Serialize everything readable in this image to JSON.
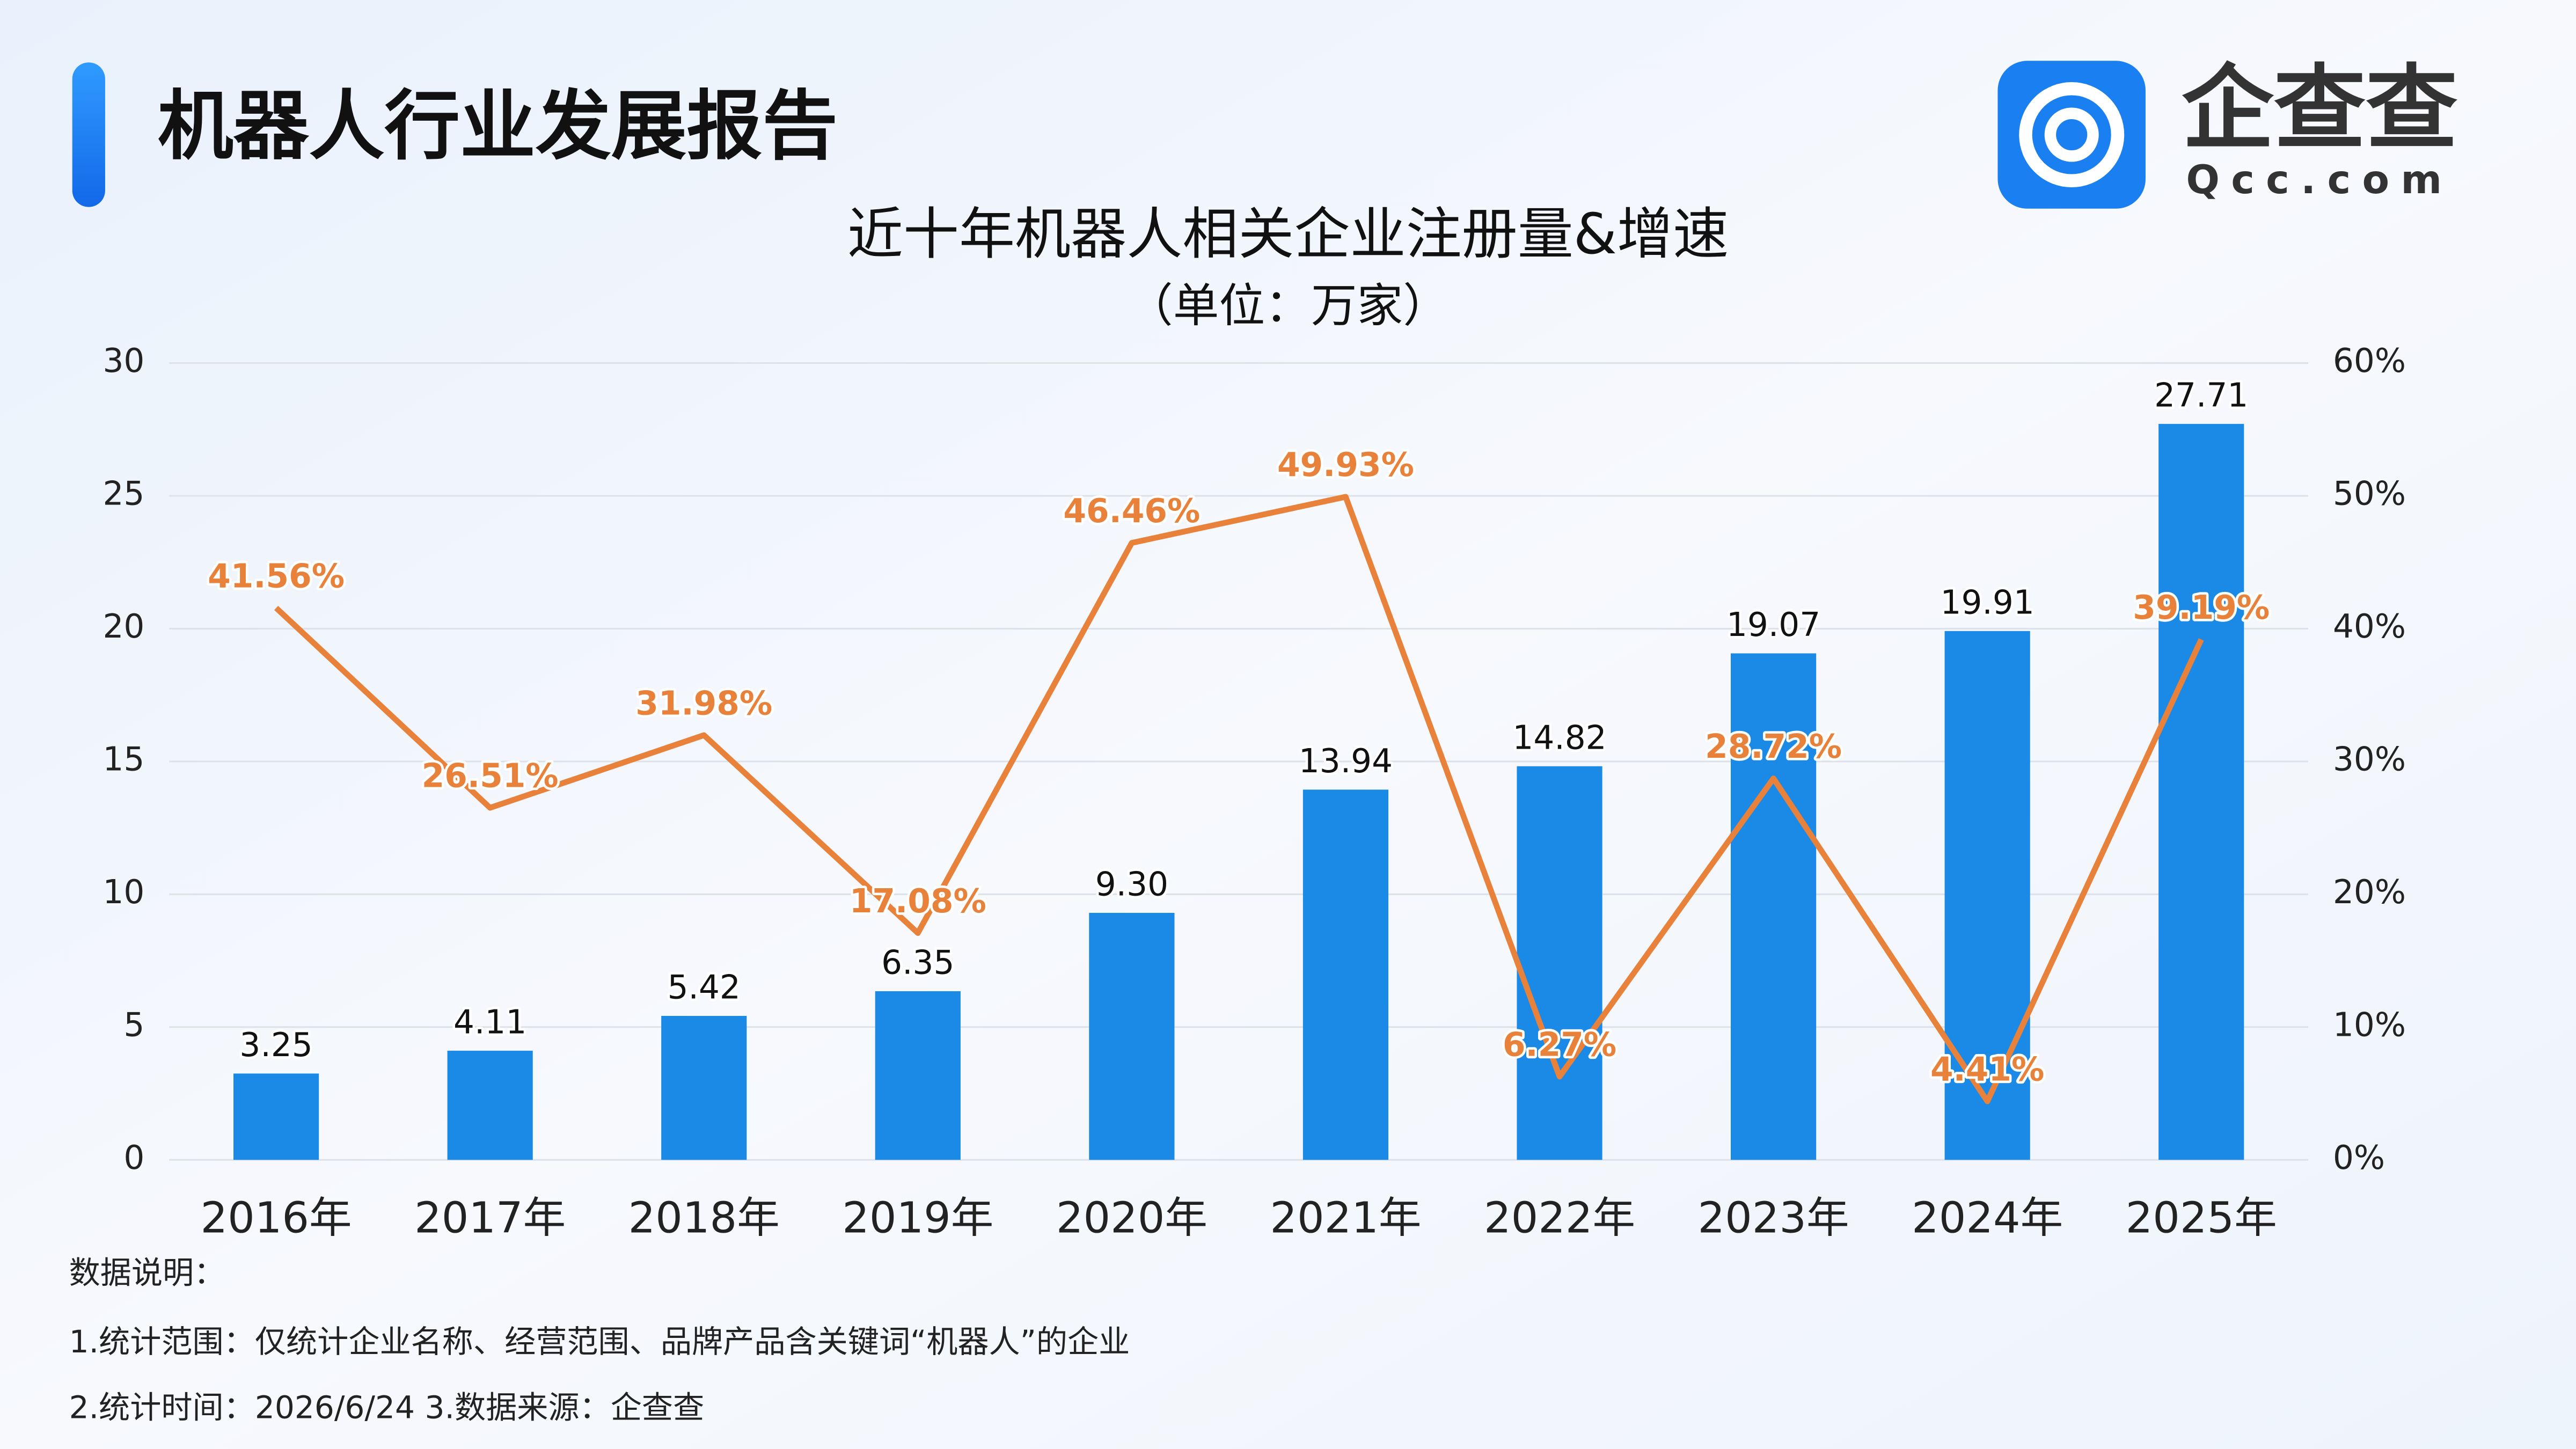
{
  "header": {
    "title": "机器人行业发展报告",
    "logo_text": "企查查",
    "logo_domain": "Qcc.com"
  },
  "chart_data": {
    "type": "combo",
    "title": "近十年机器人相关企业注册量&增速",
    "subtitle": "（单位：万家）",
    "categories": [
      "2016年",
      "2017年",
      "2018年",
      "2019年",
      "2020年",
      "2021年",
      "2022年",
      "2023年",
      "2024年",
      "2025年"
    ],
    "series": [
      {
        "type": "bar",
        "color": "#1a8ae6",
        "values": [
          3.25,
          4.11,
          5.42,
          6.35,
          9.3,
          13.94,
          14.82,
          19.07,
          19.91,
          27.71
        ],
        "value_labels": [
          "3.25",
          "4.11",
          "5.42",
          "6.35",
          "9.30",
          "13.94",
          "14.82",
          "19.07",
          "19.91",
          "27.71"
        ]
      },
      {
        "type": "line",
        "axis": "y2",
        "color": "#e8823a",
        "values": [
          41.56,
          26.51,
          31.98,
          17.08,
          46.46,
          49.93,
          6.27,
          28.72,
          4.41,
          39.19
        ],
        "value_labels": [
          "41.56%",
          "26.51%",
          "31.98%",
          "17.08%",
          "46.46%",
          "49.93%",
          "6.27%",
          "28.72%",
          "4.41%",
          "39.19%"
        ]
      }
    ],
    "ylim": [
      0,
      30
    ],
    "yticks": [
      0,
      5,
      10,
      15,
      20,
      25,
      30
    ],
    "y2lim": [
      0,
      60
    ],
    "y2ticks": [
      {
        "value": 0,
        "label": "0%"
      },
      {
        "value": 10,
        "label": "10%"
      },
      {
        "value": 20,
        "label": "20%"
      },
      {
        "value": 30,
        "label": "30%"
      },
      {
        "value": 40,
        "label": "40%"
      },
      {
        "value": 50,
        "label": "50%"
      },
      {
        "value": 60,
        "label": "60%"
      }
    ],
    "grid": true
  },
  "footer": {
    "lines": [
      "数据说明：",
      "1.统计范围：仅统计企业名称、经营范围、品牌产品含关键词“机器人”的企业",
      "2.统计时间：2026/6/24  3.数据来源：企查查"
    ]
  }
}
